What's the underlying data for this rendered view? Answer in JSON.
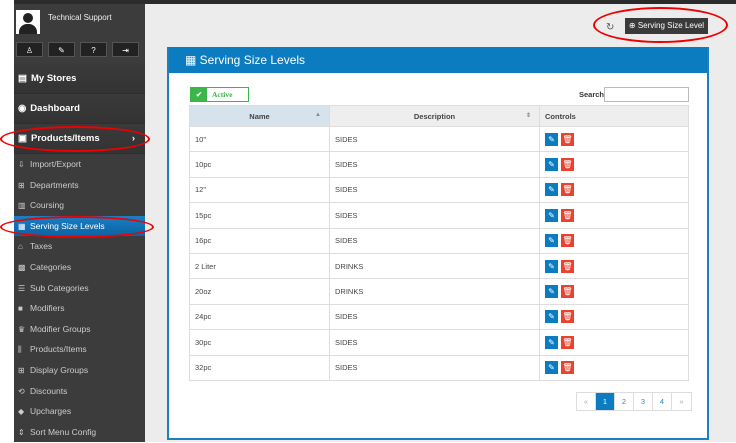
{
  "sidebar": {
    "user": "Technical Support",
    "profile_buttons": [
      "user-icon",
      "brush-icon",
      "help-icon",
      "logout-icon"
    ],
    "main": [
      {
        "label": "My Stores"
      },
      {
        "label": "Dashboard"
      },
      {
        "label": "Products/Items"
      }
    ],
    "items": [
      {
        "label": "Import/Export"
      },
      {
        "label": "Departments"
      },
      {
        "label": "Coursing"
      },
      {
        "label": "Serving Size Levels"
      },
      {
        "label": "Taxes"
      },
      {
        "label": "Categories"
      },
      {
        "label": "Sub Categories"
      },
      {
        "label": "Modifiers"
      },
      {
        "label": "Modifier Groups"
      },
      {
        "label": "Products/Items"
      },
      {
        "label": "Display Groups"
      },
      {
        "label": "Discounts"
      },
      {
        "label": "Upcharges"
      },
      {
        "label": "Sort Menu Config"
      }
    ]
  },
  "toolbar": {
    "add_label": "Serving Size Level"
  },
  "panel": {
    "title": "Serving Size Levels",
    "active_label": "Active",
    "search_label": "Search",
    "search_value": "",
    "columns": [
      "Name",
      "Description",
      "Controls"
    ],
    "rows": [
      [
        "10\"",
        "SIDES"
      ],
      [
        "10pc",
        "SIDES"
      ],
      [
        "12\"",
        "SIDES"
      ],
      [
        "15pc",
        "SIDES"
      ],
      [
        "16pc",
        "SIDES"
      ],
      [
        "2 Liter",
        "DRINKS"
      ],
      [
        "20oz",
        "DRINKS"
      ],
      [
        "24pc",
        "SIDES"
      ],
      [
        "30pc",
        "SIDES"
      ],
      [
        "32pc",
        "SIDES"
      ]
    ]
  },
  "pagination": {
    "prev": "«",
    "pages": [
      "1",
      "2",
      "3",
      "4"
    ],
    "current": "1",
    "next": "»"
  },
  "colors": {
    "accent": "#0b7cc0",
    "delete": "#e8432e",
    "active": "#3cb54a"
  }
}
